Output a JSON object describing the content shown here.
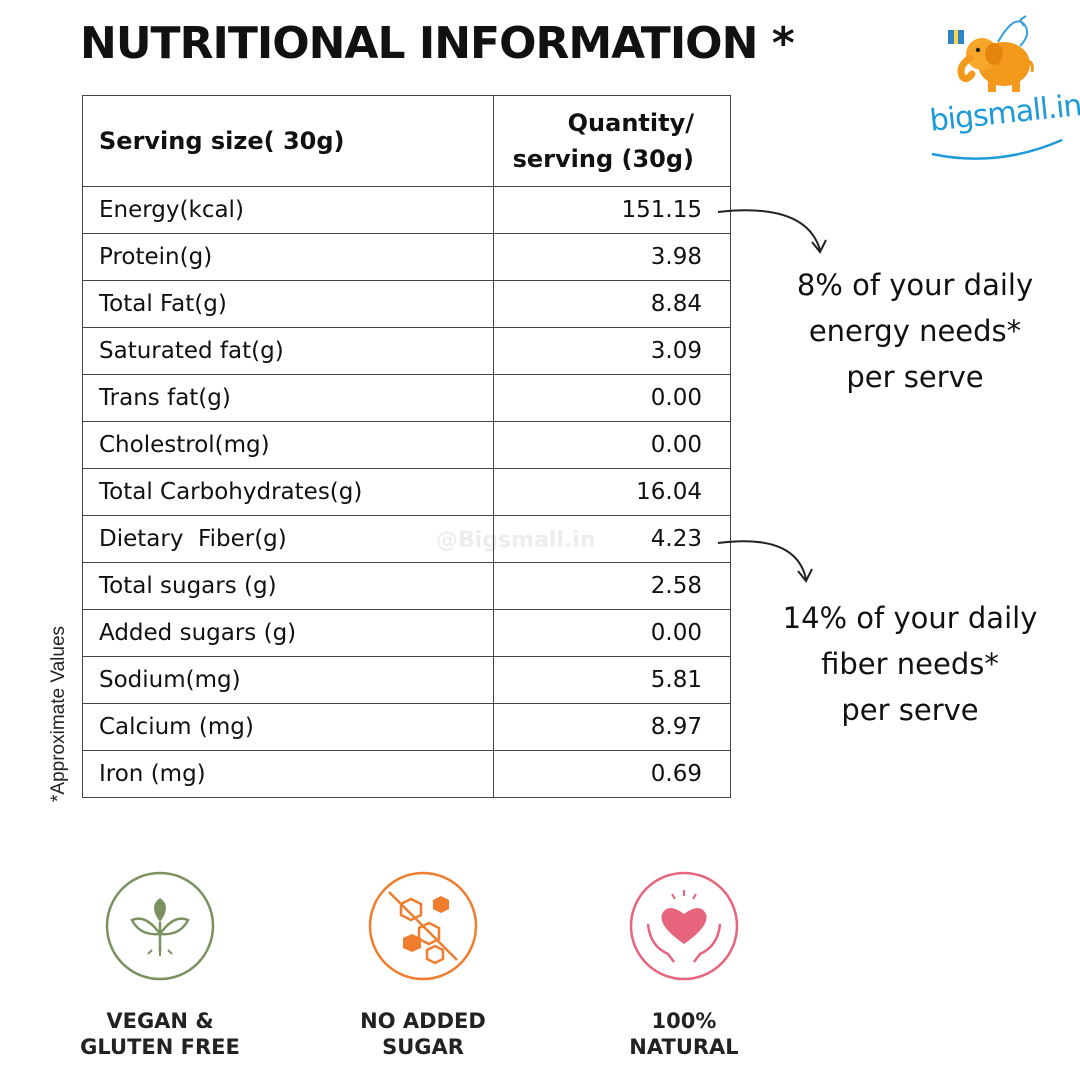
{
  "header": {
    "title": "NUTRITIONAL INFORMATION *"
  },
  "logo": {
    "text": "bigsmall.in",
    "icon": "elephant-gift-icon"
  },
  "side_note": "*Approximate Values",
  "table": {
    "header": {
      "col1": "Serving size( 30g)",
      "col2_line1": "Quantity/",
      "col2_line2": "serving (30g)"
    },
    "rows": [
      {
        "label": "Energy(kcal)",
        "value": "151.15"
      },
      {
        "label": "Protein(g)",
        "value": "3.98"
      },
      {
        "label": "Total Fat(g)",
        "value": "8.84"
      },
      {
        "label": "Saturated fat(g)",
        "value": "3.09"
      },
      {
        "label": "Trans fat(g)",
        "value": "0.00"
      },
      {
        "label": "Cholestrol(mg)",
        "value": "0.00"
      },
      {
        "label": "Total Carbohydrates(g)",
        "value": "16.04"
      },
      {
        "label": "Dietary  Fiber(g)",
        "value": "4.23"
      },
      {
        "label": "Total sugars (g)",
        "value": "2.58"
      },
      {
        "label": "Added sugars (g)",
        "value": "0.00"
      },
      {
        "label": "Sodium(mg)",
        "value": "5.81"
      },
      {
        "label": "Calcium (mg)",
        "value": "8.97"
      },
      {
        "label": "Iron (mg)",
        "value": "0.69"
      }
    ]
  },
  "watermark": "@Bigsmall.in",
  "callouts": {
    "energy": {
      "line1": "8% of your daily",
      "line2": "energy needs*",
      "line3": "per serve"
    },
    "fiber": {
      "line1": "14% of your daily",
      "line2": "fiber needs*",
      "line3": "per serve"
    }
  },
  "badges": [
    {
      "icon": "plant-sprout-icon",
      "line1": "VEGAN &",
      "line2": "GLUTEN FREE",
      "color": "#7a9160"
    },
    {
      "icon": "no-sugar-cubes-icon",
      "line1": "NO ADDED",
      "line2": "SUGAR",
      "color": "#ef7d2d"
    },
    {
      "icon": "heart-hands-icon",
      "line1": "100%",
      "line2": "NATURAL",
      "color": "#e7657c"
    }
  ]
}
